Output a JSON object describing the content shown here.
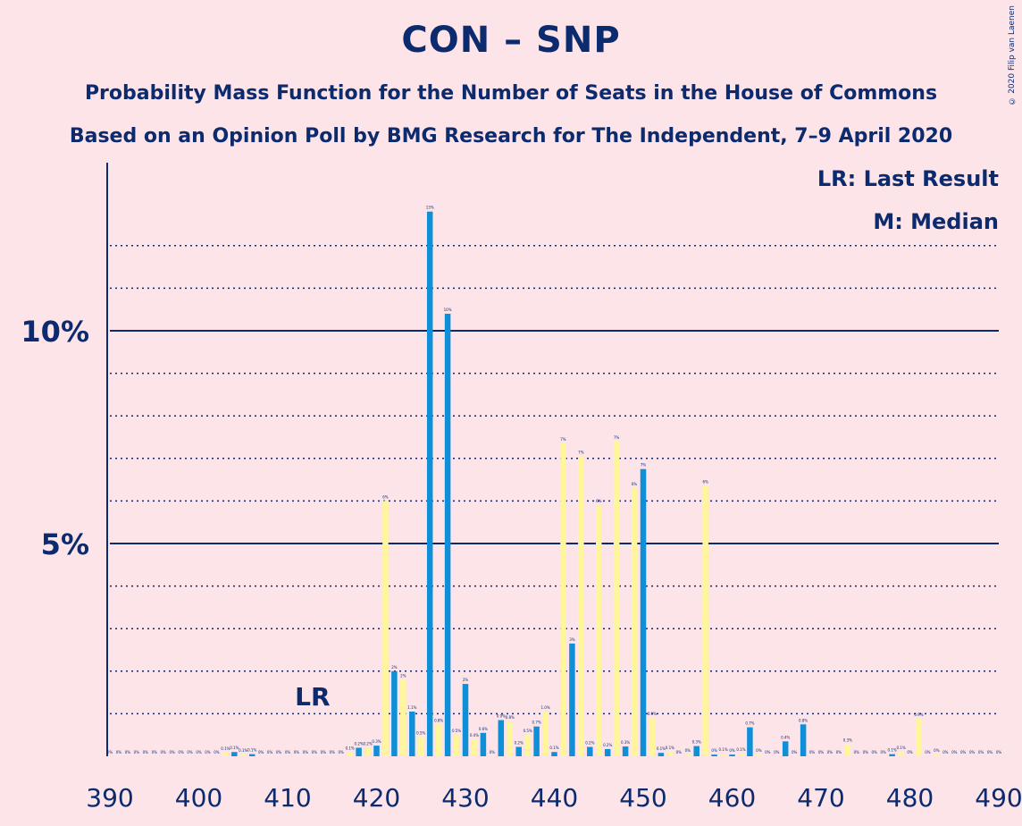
{
  "title": "CON – SNP",
  "subtitle_1": "Probability Mass Function for the Number of Seats in the House of Commons",
  "subtitle_2": "Based on an Opinion Poll by BMG Research for The Independent, 7–9 April 2020",
  "copyright": "© 2020 Filip van Laenen",
  "legend": {
    "last_result": "LR: Last Result",
    "median": "M: Median"
  },
  "lr_marker": "LR",
  "colors": {
    "background": "#fde4e8",
    "text": "#0c2a6e",
    "con_bar": "#0f8fd8",
    "snp_bar": "#fff59a",
    "axis": "#0c2a6e"
  },
  "chart_data": {
    "type": "bar",
    "xlim": [
      390,
      490
    ],
    "ylim": [
      0,
      14
    ],
    "x_ticks": [
      390,
      400,
      410,
      420,
      430,
      440,
      450,
      460,
      470,
      480,
      490
    ],
    "x_tick_labels": [
      "390",
      "400",
      "410",
      "420",
      "430",
      "440",
      "450",
      "460",
      "470",
      "480",
      "490"
    ],
    "y_ticks": [
      5,
      10
    ],
    "y_tick_labels": [
      "5%",
      "10%"
    ],
    "grid": "dotted at every 1%, solid at 5% and 10%",
    "last_result_seat": 413,
    "series": [
      {
        "color": "#0f8fd8",
        "points": [
          [
            390,
            0,
            "0%"
          ],
          [
            392,
            0,
            "0%"
          ],
          [
            394,
            0,
            "0%"
          ],
          [
            396,
            0,
            "0%"
          ],
          [
            398,
            0,
            "0%"
          ],
          [
            400,
            0,
            "0%"
          ],
          [
            402,
            0,
            "0%"
          ],
          [
            404,
            0.1,
            "0.1%"
          ],
          [
            406,
            0.05,
            "0.1%"
          ],
          [
            408,
            0,
            "0%"
          ],
          [
            410,
            0,
            "0%"
          ],
          [
            412,
            0,
            "0%"
          ],
          [
            414,
            0,
            "0%"
          ],
          [
            416,
            0,
            "0%"
          ],
          [
            418,
            0.2,
            "0.2%"
          ],
          [
            420,
            0.25,
            "0.3%"
          ],
          [
            422,
            2.0,
            "2%"
          ],
          [
            424,
            1.05,
            "1.1%"
          ],
          [
            426,
            12.8,
            "13%"
          ],
          [
            428,
            10.4,
            "10%"
          ],
          [
            430,
            1.7,
            "2%"
          ],
          [
            432,
            0.55,
            "0.6%"
          ],
          [
            434,
            0.85,
            "0.9%"
          ],
          [
            436,
            0.22,
            "0.2%"
          ],
          [
            438,
            0.7,
            "0.7%"
          ],
          [
            440,
            0.1,
            "0.1%"
          ],
          [
            442,
            2.65,
            "3%"
          ],
          [
            444,
            0.22,
            "0.2%"
          ],
          [
            446,
            0.17,
            "0.2%"
          ],
          [
            448,
            0.23,
            "0.3%"
          ],
          [
            450,
            6.75,
            "7%"
          ],
          [
            452,
            0.08,
            "0.1%"
          ],
          [
            454,
            0,
            "0%"
          ],
          [
            456,
            0.24,
            "0.3%"
          ],
          [
            458,
            0.04,
            "0%"
          ],
          [
            460,
            0.04,
            "0%"
          ],
          [
            462,
            0.68,
            "0.7%"
          ],
          [
            464,
            0,
            "0%"
          ],
          [
            466,
            0.35,
            "0.4%"
          ],
          [
            468,
            0.75,
            "0.8%"
          ],
          [
            470,
            0,
            "0%"
          ],
          [
            472,
            0,
            "0%"
          ],
          [
            474,
            0,
            "0%"
          ],
          [
            476,
            0,
            "0%"
          ],
          [
            478,
            0.05,
            "0.1%"
          ],
          [
            480,
            0,
            "0%"
          ],
          [
            482,
            0,
            "0%"
          ],
          [
            484,
            0,
            "0%"
          ],
          [
            486,
            0,
            "0%"
          ],
          [
            488,
            0,
            "0%"
          ],
          [
            490,
            0,
            "0%"
          ]
        ]
      },
      {
        "color": "#fff59a",
        "points": [
          [
            391,
            0,
            "0%"
          ],
          [
            393,
            0,
            "0%"
          ],
          [
            395,
            0,
            "0%"
          ],
          [
            397,
            0,
            "0%"
          ],
          [
            399,
            0,
            "0%"
          ],
          [
            401,
            0,
            "0%"
          ],
          [
            403,
            0.08,
            "0.1%"
          ],
          [
            405,
            0.04,
            "0.1%"
          ],
          [
            407,
            0,
            "0%"
          ],
          [
            409,
            0,
            "0%"
          ],
          [
            411,
            0,
            "0%"
          ],
          [
            413,
            0,
            "0%"
          ],
          [
            415,
            0,
            "0%"
          ],
          [
            417,
            0.09,
            "0.1%"
          ],
          [
            419,
            0.2,
            "0.2%"
          ],
          [
            421,
            6.0,
            "6%"
          ],
          [
            423,
            1.8,
            "2%"
          ],
          [
            425,
            0.45,
            "0.5%"
          ],
          [
            427,
            0.75,
            "0.8%"
          ],
          [
            429,
            0.5,
            "0.5%"
          ],
          [
            431,
            0.4,
            "0.4%"
          ],
          [
            433,
            0,
            "0%"
          ],
          [
            435,
            0.82,
            "0.8%"
          ],
          [
            437,
            0.5,
            "0.5%"
          ],
          [
            439,
            1.05,
            "1.0%"
          ],
          [
            441,
            7.35,
            "7%"
          ],
          [
            443,
            7.05,
            "7%"
          ],
          [
            445,
            5.9,
            "6%"
          ],
          [
            447,
            7.4,
            "7%"
          ],
          [
            449,
            6.3,
            "6%"
          ],
          [
            451,
            0.9,
            "0.9%"
          ],
          [
            453,
            0.1,
            "0.1%"
          ],
          [
            455,
            0.04,
            "0%"
          ],
          [
            457,
            6.35,
            "6%"
          ],
          [
            459,
            0.06,
            "0.1%"
          ],
          [
            461,
            0.06,
            "0.1%"
          ],
          [
            463,
            0.04,
            "0%"
          ],
          [
            465,
            0,
            "0%"
          ],
          [
            467,
            0,
            "0%"
          ],
          [
            469,
            0,
            "0%"
          ],
          [
            471,
            0,
            "0%"
          ],
          [
            473,
            0.28,
            "0.3%"
          ],
          [
            475,
            0,
            "0%"
          ],
          [
            477,
            0,
            "0%"
          ],
          [
            479,
            0.1,
            "0.1%"
          ],
          [
            481,
            0.88,
            "0.9%"
          ],
          [
            483,
            0.04,
            "0%"
          ],
          [
            485,
            0,
            "0%"
          ],
          [
            487,
            0,
            "0%"
          ],
          [
            489,
            0,
            "0%"
          ]
        ]
      }
    ]
  }
}
